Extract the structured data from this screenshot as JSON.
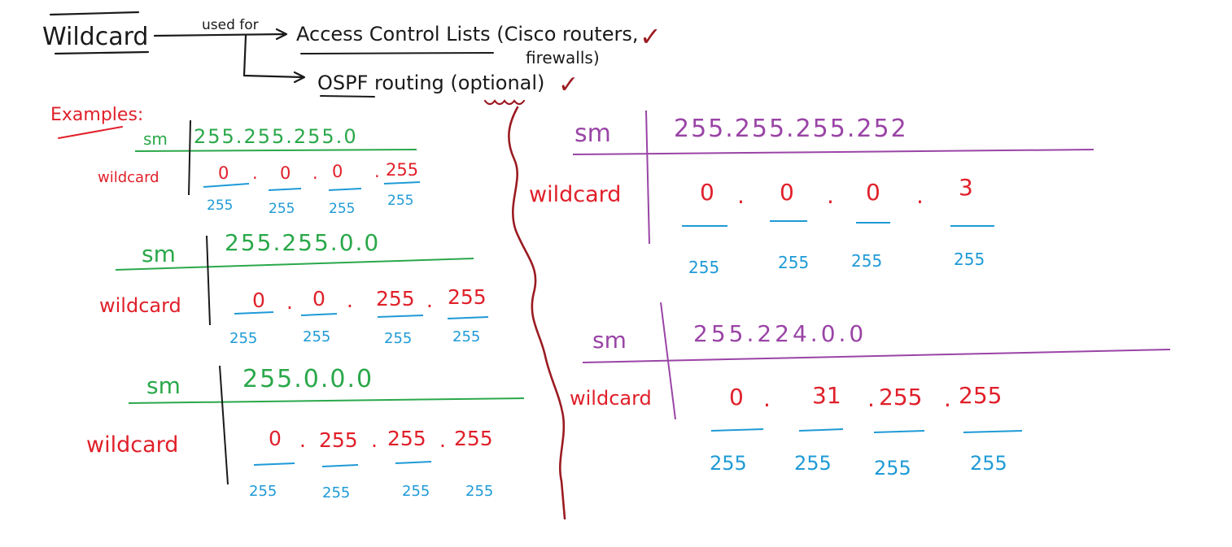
{
  "header": {
    "term": "Wildcard",
    "used_for": "used for",
    "use_1": "Access Control Lists (Cisco routers,",
    "use_1b": "firewalls)",
    "use_2": "OSPF routing (optional)",
    "check": "✓"
  },
  "examples_label": "Examples:",
  "blocks": [
    {
      "sm_label": "sm",
      "wc_label": "wildcard",
      "mask": "255.255.255.0",
      "octets": [
        "0",
        "0",
        "0",
        "255"
      ],
      "bases": [
        "255",
        "255",
        "255",
        "255"
      ]
    },
    {
      "sm_label": "sm",
      "wc_label": "wildcard",
      "mask": "255.255.0.0",
      "octets": [
        "0",
        "0",
        "255",
        "255"
      ],
      "bases": [
        "255",
        "255",
        "255",
        "255"
      ]
    },
    {
      "sm_label": "sm",
      "wc_label": "wildcard",
      "mask": "255.0.0.0",
      "octets": [
        "0",
        "255",
        "255",
        "255"
      ],
      "bases": [
        "255",
        "255",
        "255",
        "255"
      ]
    },
    {
      "sm_label": "sm",
      "wc_label": "wildcard",
      "mask": "255.255.255.252",
      "octets": [
        "0",
        "0",
        "0",
        "3"
      ],
      "bases": [
        "255",
        "255",
        "255",
        "255"
      ]
    },
    {
      "sm_label": "sm",
      "wc_label": "wildcard",
      "mask": "255.224.0.0",
      "octets": [
        "0",
        "31",
        "255",
        "255"
      ],
      "bases": [
        "255",
        "255",
        "255",
        "255"
      ]
    }
  ],
  "colors": {
    "black": "#1a1a1a",
    "red": "#e0202a",
    "green": "#2aa84a",
    "blue": "#1e9ad6",
    "purple": "#9a44a6",
    "maroon": "#9b1b22"
  }
}
